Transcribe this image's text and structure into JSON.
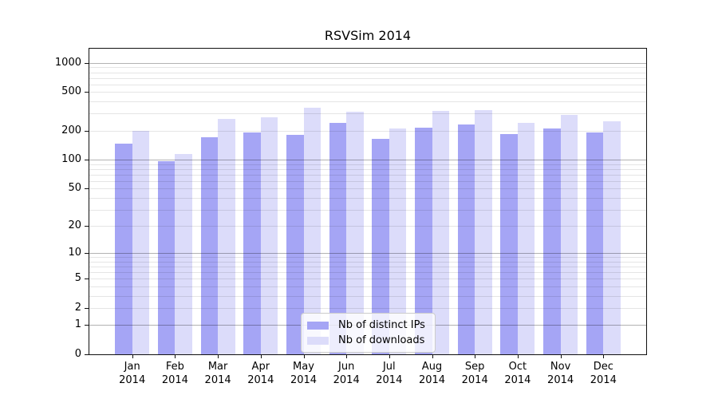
{
  "title": "RSVSim 2014",
  "chart_data": {
    "type": "bar",
    "title": "RSVSim 2014",
    "categories": [
      "Jan",
      "Feb",
      "Mar",
      "Apr",
      "May",
      "Jun",
      "Jul",
      "Aug",
      "Sep",
      "Oct",
      "Nov",
      "Dec"
    ],
    "x_year_label": "2014",
    "series": [
      {
        "name": "Nb of distinct IPs",
        "color": "#a5a5f5",
        "values": [
          147,
          96,
          170,
          192,
          182,
          240,
          163,
          216,
          230,
          185,
          210,
          193
        ]
      },
      {
        "name": "Nb of downloads",
        "color": "#dcdcfa",
        "values": [
          197,
          114,
          263,
          273,
          346,
          312,
          210,
          322,
          328,
          240,
          293,
          250
        ]
      }
    ],
    "yscale": "log1p",
    "ylim": [
      0,
      1400
    ],
    "yticks": [
      0,
      1,
      2,
      5,
      10,
      20,
      50,
      100,
      200,
      500,
      1000
    ],
    "grid_major_lines": [
      1,
      10,
      100,
      1000
    ],
    "grid": true,
    "legend_position": "lower-center"
  }
}
